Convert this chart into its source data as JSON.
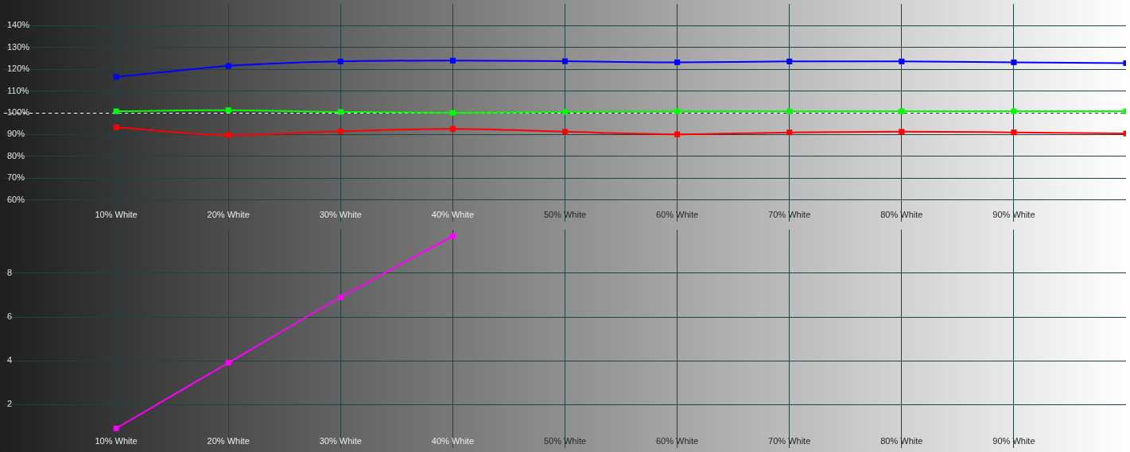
{
  "chart_data": [
    {
      "type": "line",
      "x": [
        10,
        20,
        30,
        40,
        50,
        60,
        70,
        80,
        90,
        100
      ],
      "series": [
        {
          "color": "#0000ff",
          "values": [
            116.5,
            121.5,
            123.6,
            124.0,
            123.7,
            123.2,
            123.6,
            123.6,
            123.2,
            122.8
          ]
        },
        {
          "color": "#00ff00",
          "values": [
            100.7,
            101.2,
            100.4,
            100.0,
            100.4,
            100.7,
            100.7,
            100.7,
            100.7,
            100.7
          ]
        },
        {
          "color": "#ff0000",
          "values": [
            93.3,
            89.8,
            91.5,
            92.6,
            91.3,
            90.1,
            91.0,
            91.3,
            91.0,
            90.5
          ]
        }
      ],
      "xlim": [
        0,
        100
      ],
      "xticks": [
        {
          "value": 10,
          "label": "10% White"
        },
        {
          "value": 20,
          "label": "20% White"
        },
        {
          "value": 30,
          "label": "30% White"
        },
        {
          "value": 40,
          "label": "40% White"
        },
        {
          "value": 50,
          "label": "50% White"
        },
        {
          "value": 60,
          "label": "60% White"
        },
        {
          "value": 70,
          "label": "70% White"
        },
        {
          "value": 80,
          "label": "80% White"
        },
        {
          "value": 90,
          "label": "90% White"
        }
      ],
      "ylim": [
        50,
        150
      ],
      "yticks": [
        {
          "value": 60,
          "label": "60%"
        },
        {
          "value": 70,
          "label": "70%"
        },
        {
          "value": 80,
          "label": "80%"
        },
        {
          "value": 90,
          "label": "90%"
        },
        {
          "value": 100,
          "label": "100%"
        },
        {
          "value": 110,
          "label": "110%"
        },
        {
          "value": 120,
          "label": "120%"
        },
        {
          "value": 130,
          "label": "130%"
        },
        {
          "value": 140,
          "label": "140%"
        }
      ],
      "ref_lines": [
        {
          "axis": "y",
          "value": 100,
          "color": "#ffffff",
          "line_style": "dashed"
        }
      ],
      "grid": true,
      "marker": "square"
    },
    {
      "type": "line",
      "x": [
        10,
        20,
        30,
        40
      ],
      "series": [
        {
          "color": "#ff00ff",
          "values": [
            0.9,
            3.9,
            6.9,
            9.7
          ]
        }
      ],
      "xlim": [
        0,
        100
      ],
      "xticks": [
        {
          "value": 10,
          "label": "10% White"
        },
        {
          "value": 20,
          "label": "20% White"
        },
        {
          "value": 30,
          "label": "30% White"
        },
        {
          "value": 40,
          "label": "40% White"
        },
        {
          "value": 50,
          "label": "50% White"
        },
        {
          "value": 60,
          "label": "60% White"
        },
        {
          "value": 70,
          "label": "70% White"
        },
        {
          "value": 80,
          "label": "80% White"
        },
        {
          "value": 90,
          "label": "90% White"
        }
      ],
      "ylim": [
        0,
        10
      ],
      "yticks": [
        2,
        4,
        6,
        8
      ],
      "grid": true,
      "marker": "square"
    }
  ]
}
